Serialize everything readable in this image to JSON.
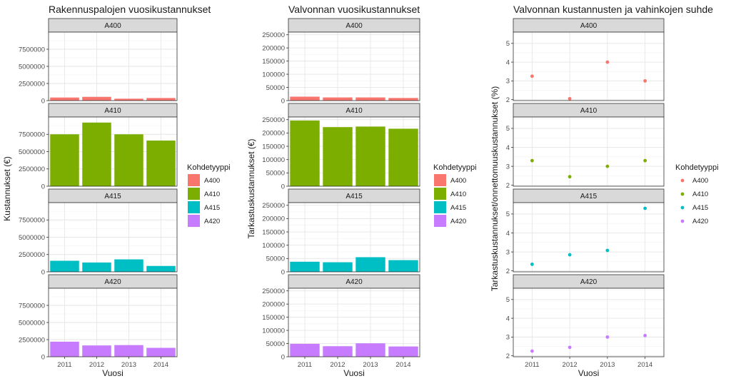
{
  "colors": {
    "A400": "#F8766D",
    "A410": "#7CAE00",
    "A415": "#00BFC4",
    "A420": "#C77CFF"
  },
  "chart_data": [
    {
      "type": "bar",
      "title": "Rakennuspalojen vuosikustannukset",
      "xlabel": "Vuosi",
      "ylabel": "Kustannukset (€)",
      "categories": [
        "2011",
        "2012",
        "2013",
        "2014"
      ],
      "ylim": [
        0,
        10000000
      ],
      "yticks": [
        0,
        2500000,
        5000000,
        7500000
      ],
      "ytick_labels": [
        "0",
        "2500000",
        "5000000",
        "7500000"
      ],
      "legend_title": "Kohdetyyppi",
      "facets": [
        {
          "name": "A400",
          "values": [
            450000,
            550000,
            280000,
            380000
          ]
        },
        {
          "name": "A410",
          "values": [
            7500000,
            9200000,
            7500000,
            6600000
          ]
        },
        {
          "name": "A415",
          "values": [
            1600000,
            1350000,
            1800000,
            850000
          ]
        },
        {
          "name": "A420",
          "values": [
            2200000,
            1650000,
            1700000,
            1300000
          ]
        }
      ]
    },
    {
      "type": "bar",
      "title": "Valvonnan vuosikustannukset",
      "xlabel": "Vuosi",
      "ylabel": "Tarkastuskustannukset (€)",
      "categories": [
        "2011",
        "2012",
        "2013",
        "2014"
      ],
      "ylim": [
        0,
        260000
      ],
      "yticks": [
        0,
        50000,
        100000,
        150000,
        200000,
        250000
      ],
      "ytick_labels": [
        "0",
        "50000",
        "100000",
        "150000",
        "200000",
        "250000"
      ],
      "legend_title": "Kohdetyyppi",
      "facets": [
        {
          "name": "A400",
          "values": [
            15000,
            12000,
            12000,
            10000
          ]
        },
        {
          "name": "A410",
          "values": [
            247000,
            222000,
            224000,
            216000
          ]
        },
        {
          "name": "A415",
          "values": [
            38000,
            36000,
            55000,
            44000
          ]
        },
        {
          "name": "A420",
          "values": [
            49000,
            40000,
            51000,
            39000
          ]
        }
      ]
    },
    {
      "type": "scatter",
      "title": "Valvonnan kustannusten ja vahinkojen suhde",
      "xlabel": "Vuosi",
      "ylabel": "Tarkastuskustannukset/onnettomuuskustannukset (%)",
      "categories": [
        "2011",
        "2012",
        "2013",
        "2014"
      ],
      "ylim": [
        1.95,
        5.6
      ],
      "yticks": [
        2,
        3,
        4,
        5
      ],
      "ytick_labels": [
        "2",
        "3",
        "4",
        "5"
      ],
      "legend_title": "Kohdetyyppi",
      "facets": [
        {
          "name": "A400",
          "values": [
            3.25,
            2.05,
            4.0,
            3.0
          ]
        },
        {
          "name": "A410",
          "values": [
            3.3,
            2.45,
            3.0,
            3.3
          ]
        },
        {
          "name": "A415",
          "values": [
            2.35,
            2.85,
            3.08,
            5.3
          ]
        },
        {
          "name": "A420",
          "values": [
            2.25,
            2.45,
            3.0,
            3.08
          ]
        }
      ]
    }
  ]
}
